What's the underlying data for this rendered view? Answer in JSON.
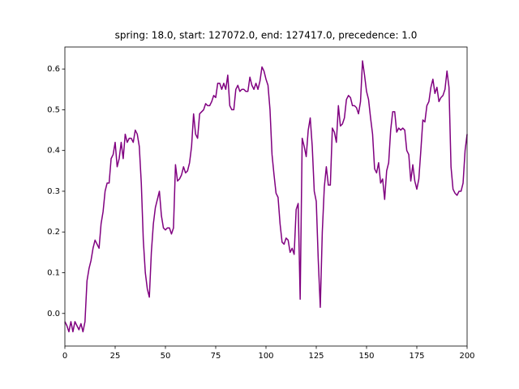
{
  "chart_data": {
    "type": "line",
    "title": "spring: 18.0, start: 127072.0, end: 127417.0, precedence: 1.0",
    "x": [
      0,
      1,
      2,
      3,
      4,
      5,
      6,
      7,
      8,
      9,
      10,
      11,
      12,
      13,
      14,
      15,
      16,
      17,
      18,
      19,
      20,
      21,
      22,
      23,
      24,
      25,
      26,
      27,
      28,
      29,
      30,
      31,
      32,
      33,
      34,
      35,
      36,
      37,
      38,
      39,
      40,
      41,
      42,
      43,
      44,
      45,
      46,
      47,
      48,
      49,
      50,
      51,
      52,
      53,
      54,
      55,
      56,
      57,
      58,
      59,
      60,
      61,
      62,
      63,
      64,
      65,
      66,
      67,
      68,
      69,
      70,
      71,
      72,
      73,
      74,
      75,
      76,
      77,
      78,
      79,
      80,
      81,
      82,
      83,
      84,
      85,
      86,
      87,
      88,
      89,
      90,
      91,
      92,
      93,
      94,
      95,
      96,
      97,
      98,
      99,
      100,
      101,
      102,
      103,
      104,
      105,
      106,
      107,
      108,
      109,
      110,
      111,
      112,
      113,
      114,
      115,
      116,
      117,
      118,
      119,
      120,
      121,
      122,
      123,
      124,
      125,
      126,
      127,
      128,
      129,
      130,
      131,
      132,
      133,
      134,
      135,
      136,
      137,
      138,
      139,
      140,
      141,
      142,
      143,
      144,
      145,
      146,
      147,
      148,
      149,
      150,
      151,
      152,
      153,
      154,
      155,
      156,
      157,
      158,
      159,
      160,
      161,
      162,
      163,
      164,
      165,
      166,
      167,
      168,
      169,
      170,
      171,
      172,
      173,
      174,
      175,
      176,
      177,
      178,
      179,
      180,
      181,
      182,
      183,
      184,
      185,
      186,
      187,
      188,
      189,
      190,
      191,
      192,
      193,
      194,
      195,
      196,
      197,
      198,
      199,
      200
    ],
    "values": [
      -0.02,
      -0.03,
      -0.045,
      -0.02,
      -0.045,
      -0.02,
      -0.03,
      -0.04,
      -0.025,
      -0.045,
      -0.02,
      0.08,
      0.11,
      0.13,
      0.16,
      0.18,
      0.17,
      0.16,
      0.22,
      0.25,
      0.3,
      0.32,
      0.32,
      0.38,
      0.39,
      0.42,
      0.36,
      0.38,
      0.42,
      0.38,
      0.44,
      0.42,
      0.43,
      0.43,
      0.42,
      0.45,
      0.44,
      0.41,
      0.32,
      0.18,
      0.1,
      0.06,
      0.04,
      0.15,
      0.22,
      0.26,
      0.28,
      0.3,
      0.24,
      0.21,
      0.205,
      0.21,
      0.21,
      0.195,
      0.21,
      0.365,
      0.325,
      0.33,
      0.34,
      0.36,
      0.345,
      0.35,
      0.37,
      0.41,
      0.49,
      0.44,
      0.43,
      0.49,
      0.495,
      0.5,
      0.515,
      0.51,
      0.51,
      0.52,
      0.535,
      0.53,
      0.565,
      0.565,
      0.55,
      0.565,
      0.55,
      0.585,
      0.51,
      0.5,
      0.5,
      0.55,
      0.56,
      0.545,
      0.55,
      0.55,
      0.545,
      0.545,
      0.58,
      0.56,
      0.55,
      0.565,
      0.55,
      0.57,
      0.605,
      0.595,
      0.575,
      0.56,
      0.5,
      0.39,
      0.34,
      0.295,
      0.285,
      0.22,
      0.175,
      0.17,
      0.185,
      0.18,
      0.15,
      0.16,
      0.145,
      0.255,
      0.27,
      0.035,
      0.43,
      0.41,
      0.385,
      0.45,
      0.48,
      0.41,
      0.3,
      0.275,
      0.13,
      0.015,
      0.2,
      0.31,
      0.36,
      0.315,
      0.315,
      0.455,
      0.445,
      0.42,
      0.51,
      0.46,
      0.465,
      0.48,
      0.525,
      0.535,
      0.53,
      0.51,
      0.51,
      0.505,
      0.49,
      0.52,
      0.62,
      0.585,
      0.545,
      0.525,
      0.48,
      0.44,
      0.355,
      0.345,
      0.37,
      0.32,
      0.33,
      0.28,
      0.35,
      0.37,
      0.45,
      0.495,
      0.495,
      0.445,
      0.455,
      0.45,
      0.455,
      0.45,
      0.4,
      0.39,
      0.325,
      0.365,
      0.325,
      0.305,
      0.33,
      0.4,
      0.475,
      0.47,
      0.51,
      0.52,
      0.555,
      0.575,
      0.54,
      0.555,
      0.52,
      0.53,
      0.535,
      0.55,
      0.595,
      0.555,
      0.36,
      0.305,
      0.295,
      0.29,
      0.3,
      0.3,
      0.32,
      0.4,
      0.44
    ],
    "color": "#800080",
    "xlim": [
      0,
      200
    ],
    "xticks": [
      0,
      25,
      50,
      75,
      100,
      125,
      150,
      175,
      200
    ],
    "ylim": [
      -0.08,
      0.654
    ],
    "yticks": [
      {
        "value": 0,
        "label": "0.0"
      },
      0.1,
      0.2,
      0.3,
      0.4,
      0.5,
      0.6
    ]
  }
}
